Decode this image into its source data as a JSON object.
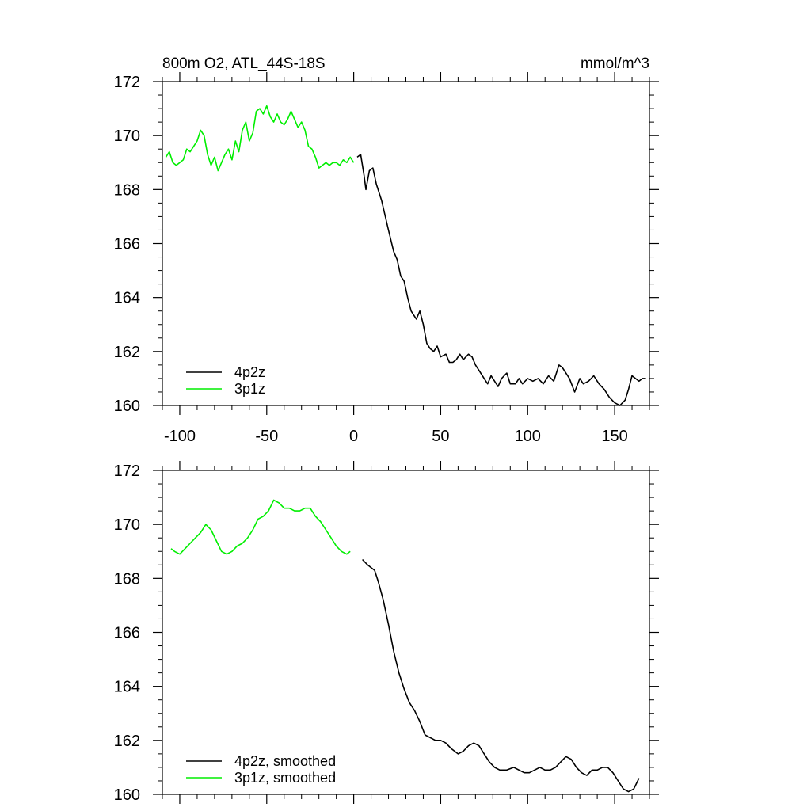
{
  "figure": {
    "title_left": "800m O2, ATL_44S-18S",
    "title_right": "mmol/m^3"
  },
  "colors": {
    "series_4p2z": "#000000",
    "series_3p1z": "#00ee00",
    "axes": "#000000",
    "background": "#ffffff"
  },
  "chart_data": [
    {
      "type": "line",
      "panel": "top",
      "title": "800m O2, ATL_44S-18S",
      "units": "mmol/m^3",
      "xlim": [
        -110,
        170
      ],
      "ylim": [
        160,
        172
      ],
      "xticks": [
        -100,
        -50,
        0,
        50,
        100,
        150
      ],
      "xtick_labels": [
        "-100",
        "-50",
        "0",
        "50",
        "100",
        "150"
      ],
      "yticks": [
        160,
        162,
        164,
        166,
        168,
        170,
        172
      ],
      "ytick_labels": [
        "160",
        "162",
        "164",
        "166",
        "168",
        "170",
        "172"
      ],
      "grid": false,
      "legend_position": "bottom-left",
      "series": [
        {
          "name": "4p2z",
          "color": "#000000",
          "x": [
            2,
            4,
            6,
            7,
            9,
            11,
            13,
            16,
            20,
            23,
            25,
            27,
            29,
            31,
            33,
            36,
            38,
            40,
            42,
            44,
            46,
            48,
            50,
            53,
            55,
            57,
            59,
            61,
            63,
            66,
            68,
            70,
            72,
            75,
            77,
            79,
            81,
            83,
            85,
            88,
            90,
            93,
            95,
            97,
            100,
            103,
            106,
            109,
            112,
            115,
            118,
            120,
            122,
            124,
            127,
            130,
            132,
            135,
            138,
            141,
            144,
            147,
            150,
            153,
            156,
            158,
            160,
            162,
            164,
            166,
            168
          ],
          "y": [
            169.2,
            169.3,
            168.5,
            168.0,
            168.7,
            168.8,
            168.2,
            167.6,
            166.5,
            165.7,
            165.4,
            164.8,
            164.6,
            164.0,
            163.5,
            163.2,
            163.5,
            163.0,
            162.3,
            162.1,
            162.0,
            162.2,
            161.8,
            161.9,
            161.6,
            161.6,
            161.7,
            161.9,
            161.7,
            161.9,
            161.8,
            161.5,
            161.3,
            161.0,
            160.8,
            161.1,
            160.9,
            160.7,
            161.0,
            161.2,
            160.8,
            160.8,
            161.0,
            160.8,
            161.0,
            160.9,
            161.0,
            160.8,
            161.1,
            160.9,
            161.5,
            161.4,
            161.2,
            161.0,
            160.5,
            161.0,
            160.8,
            160.9,
            161.1,
            160.8,
            160.6,
            160.3,
            160.1,
            160.0,
            160.2,
            160.6,
            161.1,
            161.0,
            160.9,
            161.0,
            161.0
          ]
        },
        {
          "name": "3p1z",
          "color": "#00ee00",
          "x": [
            -108,
            -106,
            -104,
            -102,
            -100,
            -98,
            -96,
            -94,
            -92,
            -90,
            -88,
            -86,
            -84,
            -82,
            -80,
            -78,
            -76,
            -74,
            -72,
            -70,
            -68,
            -66,
            -64,
            -62,
            -60,
            -58,
            -56,
            -54,
            -52,
            -50,
            -48,
            -46,
            -44,
            -42,
            -40,
            -38,
            -36,
            -34,
            -32,
            -30,
            -28,
            -26,
            -24,
            -22,
            -20,
            -18,
            -16,
            -14,
            -12,
            -10,
            -8,
            -6,
            -4,
            -2,
            0
          ],
          "y": [
            169.2,
            169.4,
            169.0,
            168.9,
            169.0,
            169.1,
            169.5,
            169.4,
            169.6,
            169.8,
            170.2,
            170.0,
            169.3,
            168.9,
            169.2,
            168.7,
            169.0,
            169.3,
            169.5,
            169.1,
            169.8,
            169.4,
            170.2,
            170.5,
            169.8,
            170.1,
            170.9,
            171.0,
            170.8,
            171.1,
            170.7,
            170.5,
            170.8,
            170.5,
            170.4,
            170.6,
            170.9,
            170.6,
            170.3,
            170.5,
            170.2,
            169.6,
            169.5,
            169.2,
            168.8,
            168.9,
            169.0,
            168.9,
            169.0,
            169.0,
            168.9,
            169.1,
            169.0,
            169.2,
            169.0
          ]
        }
      ]
    },
    {
      "type": "line",
      "panel": "bottom",
      "xlim": [
        -110,
        170
      ],
      "ylim": [
        160,
        172
      ],
      "xticks": [
        -100,
        -50,
        0,
        50,
        100,
        150
      ],
      "yticks": [
        160,
        162,
        164,
        166,
        168,
        170,
        172
      ],
      "ytick_labels": [
        "160",
        "162",
        "164",
        "166",
        "168",
        "170",
        "172"
      ],
      "grid": false,
      "legend_position": "bottom-left",
      "series": [
        {
          "name": "4p2z, smoothed",
          "color": "#000000",
          "x": [
            5,
            8,
            10,
            12,
            14,
            17,
            20,
            23,
            26,
            29,
            32,
            35,
            38,
            41,
            44,
            47,
            50,
            53,
            56,
            60,
            63,
            66,
            69,
            72,
            75,
            78,
            81,
            84,
            88,
            92,
            95,
            98,
            101,
            104,
            107,
            110,
            113,
            116,
            119,
            122,
            125,
            128,
            131,
            134,
            137,
            140,
            143,
            146,
            149,
            152,
            155,
            158,
            161,
            164
          ],
          "y": [
            168.7,
            168.5,
            168.4,
            168.3,
            167.9,
            167.2,
            166.3,
            165.3,
            164.5,
            163.9,
            163.4,
            163.1,
            162.7,
            162.2,
            162.1,
            162.0,
            162.0,
            161.9,
            161.7,
            161.5,
            161.6,
            161.8,
            161.9,
            161.8,
            161.5,
            161.2,
            161.0,
            160.9,
            160.9,
            161.0,
            160.9,
            160.8,
            160.8,
            160.9,
            161.0,
            160.9,
            160.9,
            161.0,
            161.2,
            161.4,
            161.3,
            161.0,
            160.8,
            160.7,
            160.9,
            160.9,
            161.0,
            161.0,
            160.8,
            160.5,
            160.2,
            160.1,
            160.2,
            160.6
          ]
        },
        {
          "name": "3p1z, smoothed",
          "color": "#00ee00",
          "x": [
            -105,
            -103,
            -100,
            -97,
            -94,
            -91,
            -88,
            -85,
            -82,
            -79,
            -76,
            -73,
            -70,
            -67,
            -64,
            -61,
            -58,
            -55,
            -52,
            -49,
            -46,
            -43,
            -40,
            -37,
            -34,
            -31,
            -28,
            -25,
            -22,
            -19,
            -16,
            -13,
            -10,
            -7,
            -4,
            -2
          ],
          "y": [
            169.1,
            169.0,
            168.9,
            169.1,
            169.3,
            169.5,
            169.7,
            170.0,
            169.8,
            169.4,
            169.0,
            168.9,
            169.0,
            169.2,
            169.3,
            169.5,
            169.8,
            170.2,
            170.3,
            170.5,
            170.9,
            170.8,
            170.6,
            170.6,
            170.5,
            170.5,
            170.6,
            170.6,
            170.3,
            170.1,
            169.8,
            169.5,
            169.2,
            169.0,
            168.9,
            169.0
          ]
        }
      ]
    }
  ]
}
